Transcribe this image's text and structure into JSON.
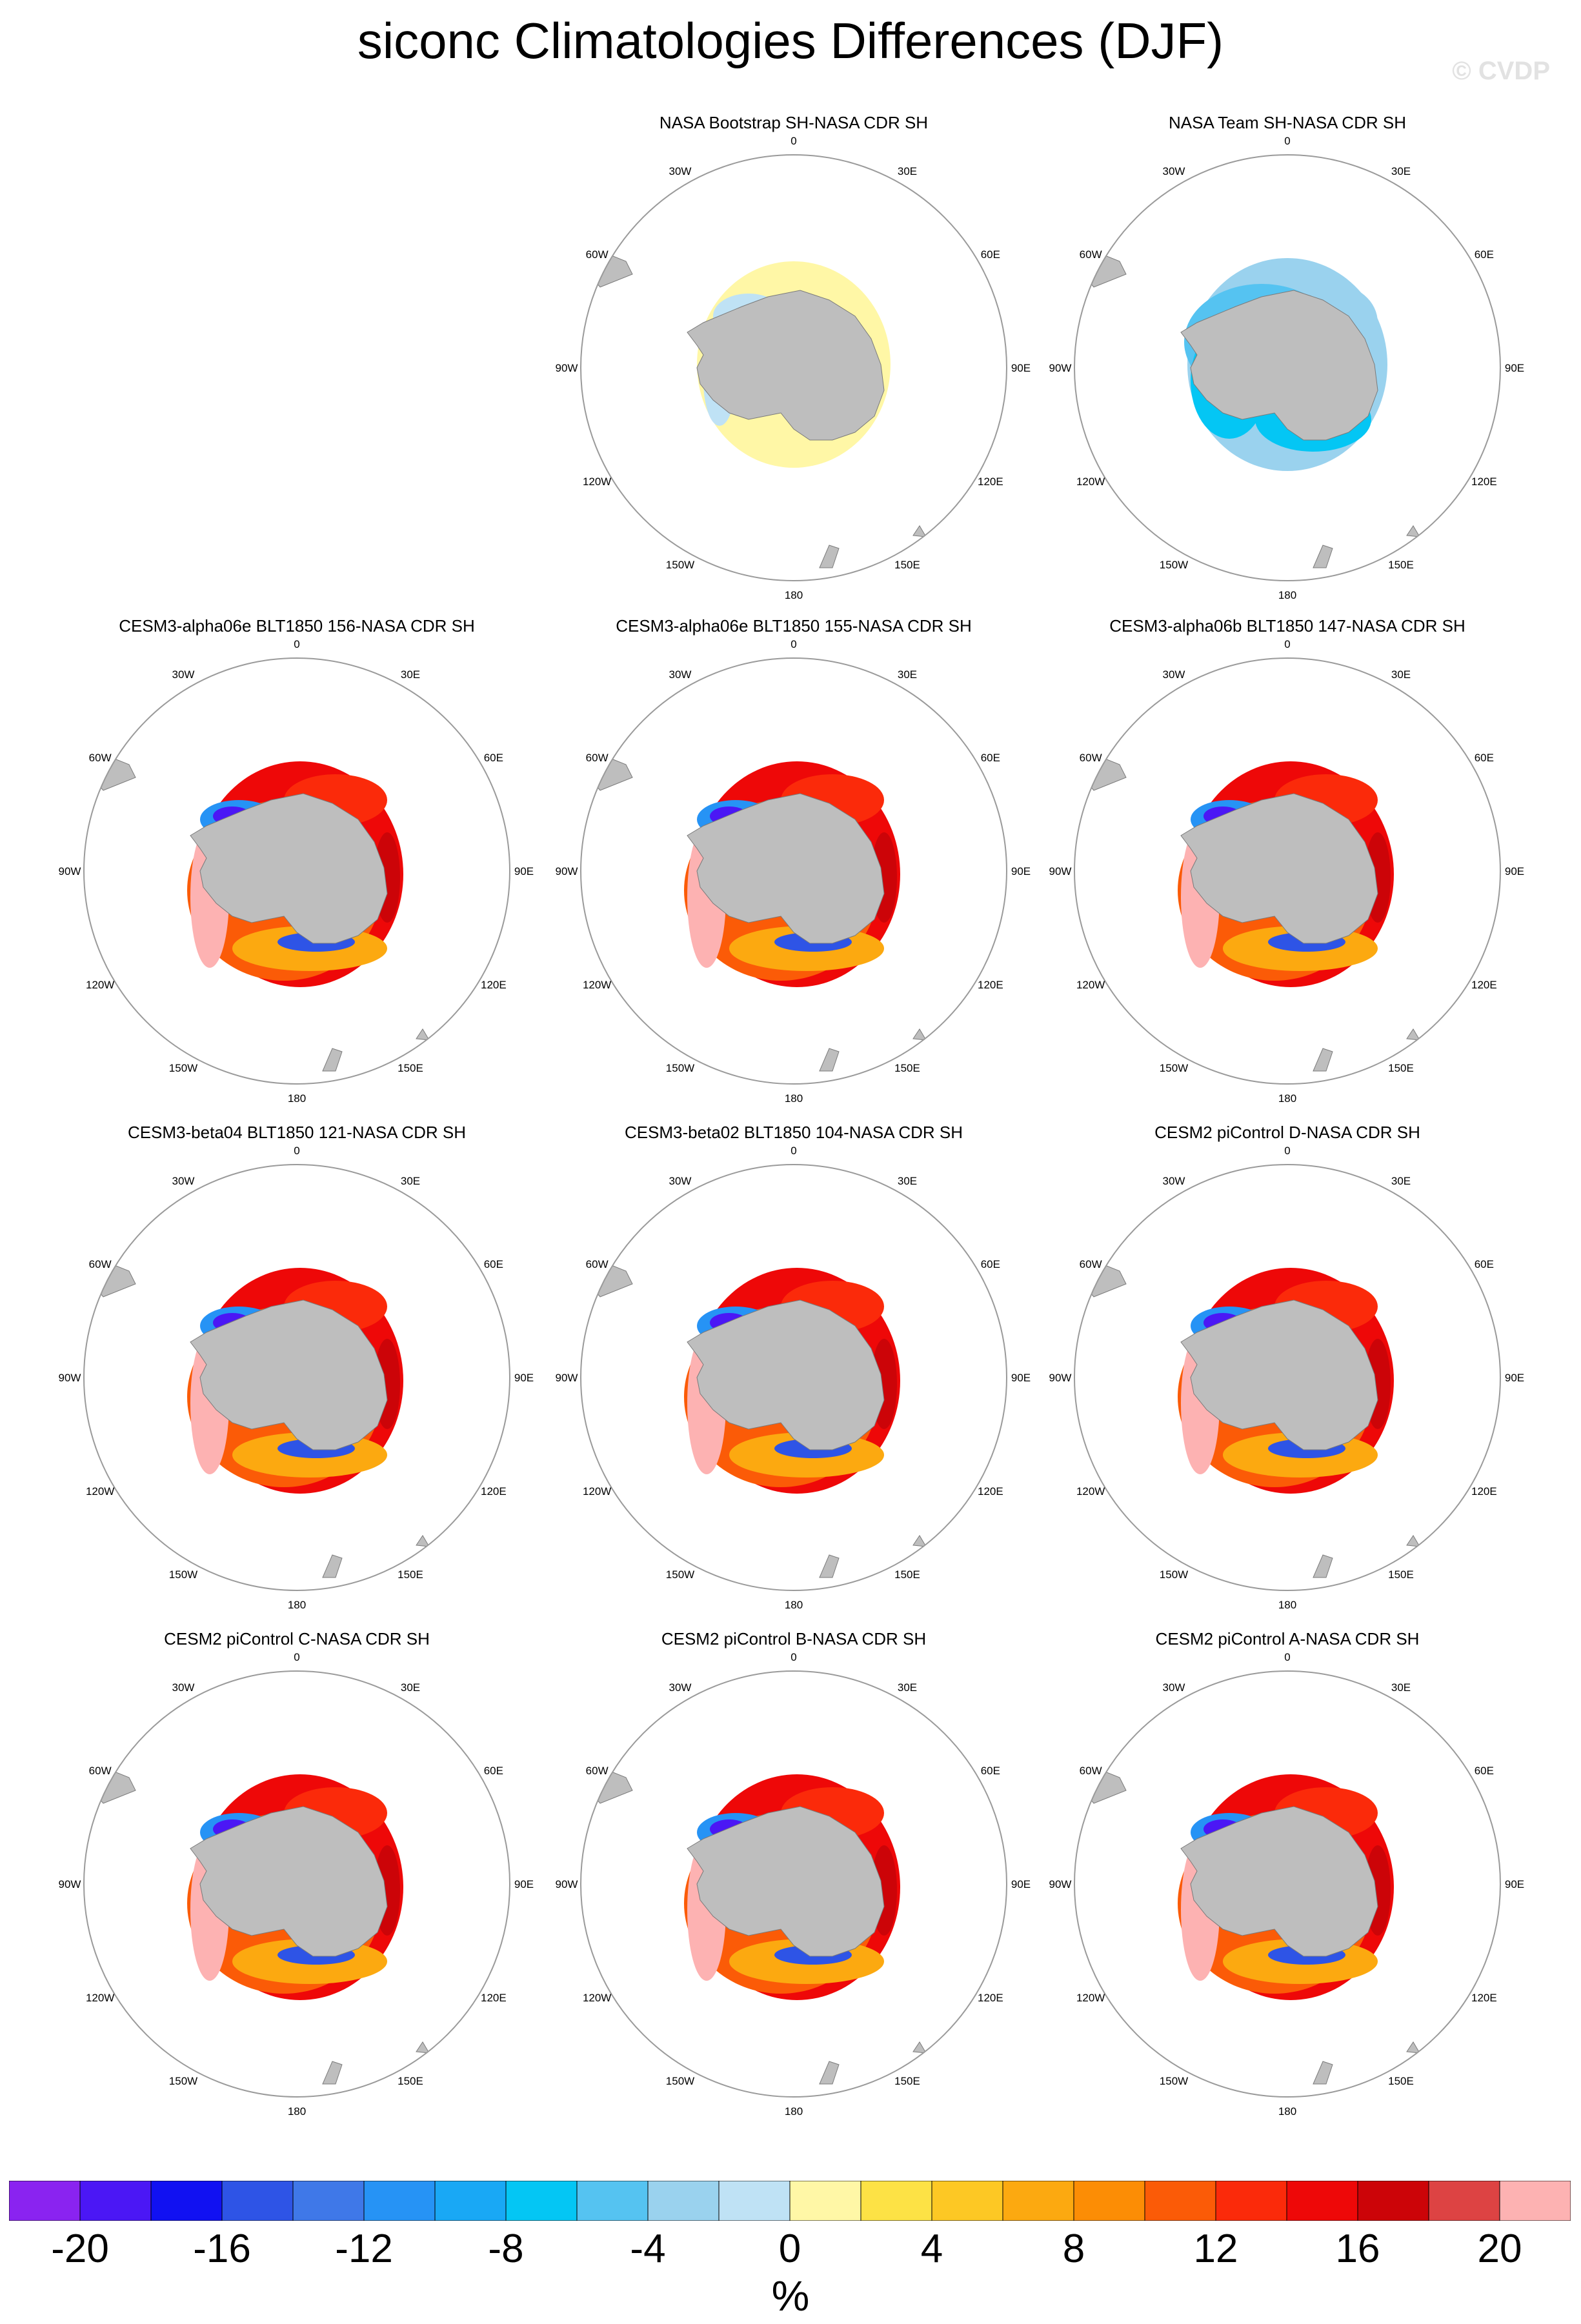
{
  "title": "siconc Climatologies Differences (DJF)",
  "watermark": "© CVDP",
  "colorbar": {
    "unit": "%",
    "ticks": [
      "-20",
      "-16",
      "-12",
      "-8",
      "-4",
      "0",
      "4",
      "8",
      "12",
      "16",
      "20"
    ],
    "colors": [
      "#8a23f0",
      "#4b17f5",
      "#1111f2",
      "#2e54e6",
      "#3f78e8",
      "#2693f5",
      "#19a8f5",
      "#04c6f4",
      "#55c3f1",
      "#9ad2ee",
      "#bfe2f5",
      "#fff7a6",
      "#fde245",
      "#fdc824",
      "#fca910",
      "#fc8d05",
      "#fb5b07",
      "#fb2a0a",
      "#ee0808",
      "#cc0408",
      "#dd4343",
      "#fdb2b2"
    ]
  },
  "map": {
    "longitude_labels": [
      "0",
      "30E",
      "60E",
      "90E",
      "120E",
      "150E",
      "180",
      "150W",
      "120W",
      "90W",
      "60W",
      "30W"
    ],
    "land_color": "#bebebe",
    "ring_color": "#9a9a9a"
  },
  "chart_data": {
    "type": "map",
    "variable": "siconc",
    "season": "DJF",
    "panels": [
      {
        "label": "NASA Bootstrap SH-NASA CDR SH",
        "pattern": "bootstrap"
      },
      {
        "label": "NASA Team SH-NASA CDR SH",
        "pattern": "team"
      },
      {
        "label": "CESM3-alpha06e BLT1850 156-NASA CDR SH",
        "pattern": "model"
      },
      {
        "label": "CESM3-alpha06e BLT1850 155-NASA CDR SH",
        "pattern": "model"
      },
      {
        "label": "CESM3-alpha06b BLT1850 147-NASA CDR SH",
        "pattern": "model"
      },
      {
        "label": "CESM3-beta04 BLT1850 121-NASA CDR SH",
        "pattern": "model"
      },
      {
        "label": "CESM3-beta02 BLT1850 104-NASA CDR SH",
        "pattern": "model"
      },
      {
        "label": "CESM2 piControl D-NASA CDR SH",
        "pattern": "model"
      },
      {
        "label": "CESM2 piControl C-NASA CDR SH",
        "pattern": "model"
      },
      {
        "label": "CESM2 piControl B-NASA CDR SH",
        "pattern": "model"
      },
      {
        "label": "CESM2 piControl A-NASA CDR SH",
        "pattern": "model"
      }
    ]
  }
}
